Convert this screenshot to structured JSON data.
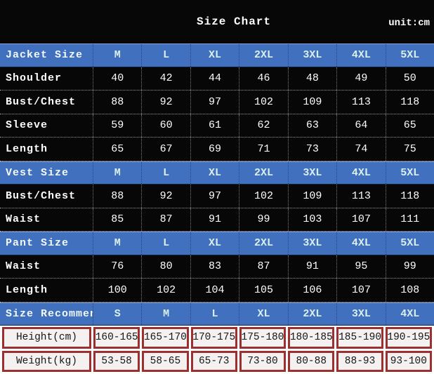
{
  "header": {
    "title": "Size Chart",
    "unit_label": "unit:cm"
  },
  "colors": {
    "background": "#070707",
    "section_row_blue": "#4170bf",
    "section_text": "#d9f0ee",
    "grid_dotted_gray": "#9a9a9a",
    "measure_border_red": "#9c2f2f",
    "measure_cell_bg": "#f5f1f1",
    "text_white": "#ffffff",
    "measure_text_black": "#161616"
  },
  "chart_data": {
    "type": "table",
    "title": "Size Chart",
    "unit": "cm",
    "rows": [
      {
        "style": "section",
        "label": "Jacket Size",
        "values": [
          "M",
          "L",
          "XL",
          "2XL",
          "3XL",
          "4XL",
          "5XL"
        ]
      },
      {
        "style": "data",
        "label": "Shoulder",
        "values": [
          "40",
          "42",
          "44",
          "46",
          "48",
          "49",
          "50"
        ]
      },
      {
        "style": "data",
        "label": "Bust/Chest",
        "values": [
          "88",
          "92",
          "97",
          "102",
          "109",
          "113",
          "118"
        ]
      },
      {
        "style": "data",
        "label": "Sleeve",
        "values": [
          "59",
          "60",
          "61",
          "62",
          "63",
          "64",
          "65"
        ]
      },
      {
        "style": "data",
        "label": "Length",
        "values": [
          "65",
          "67",
          "69",
          "71",
          "73",
          "74",
          "75"
        ]
      },
      {
        "style": "section",
        "label": "Vest Size",
        "values": [
          "M",
          "L",
          "XL",
          "2XL",
          "3XL",
          "4XL",
          "5XL"
        ]
      },
      {
        "style": "data",
        "label": "Bust/Chest",
        "values": [
          "88",
          "92",
          "97",
          "102",
          "109",
          "113",
          "118"
        ]
      },
      {
        "style": "data",
        "label": "Waist",
        "values": [
          "85",
          "87",
          "91",
          "99",
          "103",
          "107",
          "111"
        ]
      },
      {
        "style": "section",
        "label": "Pant Size",
        "values": [
          "M",
          "L",
          "XL",
          "2XL",
          "3XL",
          "4XL",
          "5XL"
        ]
      },
      {
        "style": "data",
        "label": "Waist",
        "values": [
          "76",
          "80",
          "83",
          "87",
          "91",
          "95",
          "99"
        ]
      },
      {
        "style": "data",
        "label": "Length",
        "values": [
          "100",
          "102",
          "104",
          "105",
          "106",
          "107",
          "108"
        ]
      },
      {
        "style": "section",
        "label": "Size Recommend",
        "values": [
          "S",
          "M",
          "L",
          "XL",
          "2XL",
          "3XL",
          "4XL"
        ]
      },
      {
        "style": "measure",
        "label": "Height(cm)",
        "values": [
          "160-165",
          "165-170",
          "170-175",
          "175-180",
          "180-185",
          "185-190",
          "190-195"
        ]
      },
      {
        "style": "measure",
        "label": "Weight(kg)",
        "values": [
          "53-58",
          "58-65",
          "65-73",
          "73-80",
          "80-88",
          "88-93",
          "93-100"
        ]
      }
    ]
  }
}
